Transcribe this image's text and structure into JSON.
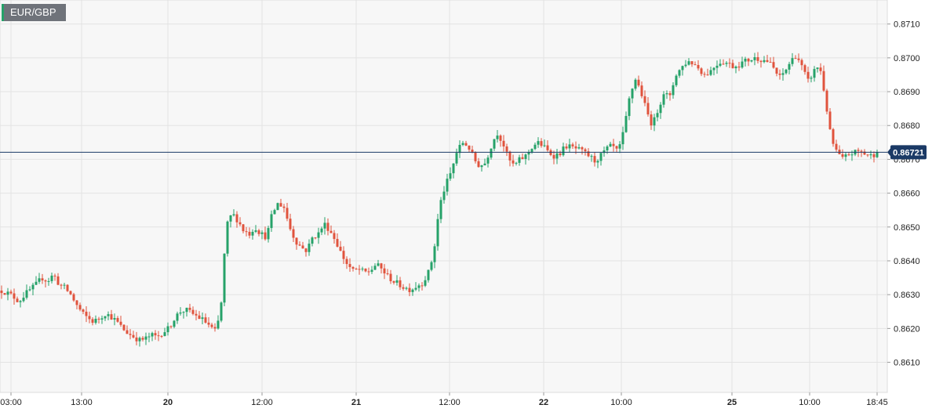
{
  "symbol": "EUR/GBP",
  "current_price_label": "0.86721",
  "colors": {
    "up": "#26a269",
    "down": "#e0533d",
    "price_line": "#1b3a66",
    "grid": "#e3e3e3",
    "plot_bg": "#f7f7f7",
    "badge_bg": "#6f737a"
  },
  "chart_data": {
    "type": "candlestick",
    "title": "",
    "y_ticks": [
      "0.8610",
      "0.8620",
      "0.8630",
      "0.8640",
      "0.8650",
      "0.8660",
      "0.8670",
      "0.8680",
      "0.8690",
      "0.8700",
      "0.8710"
    ],
    "ylim": [
      0.86011,
      0.87171
    ],
    "x_ticks": [
      {
        "label": "03:00",
        "bold": false
      },
      {
        "label": "13:00",
        "bold": false
      },
      {
        "label": "20",
        "bold": true
      },
      {
        "label": "12:00",
        "bold": false
      },
      {
        "label": "21",
        "bold": true
      },
      {
        "label": "12:00",
        "bold": false
      },
      {
        "label": "22",
        "bold": true
      },
      {
        "label": "10:00",
        "bold": false
      },
      {
        "label": "25",
        "bold": true
      },
      {
        "label": "10:00",
        "bold": false
      },
      {
        "label": "18:45",
        "bold": false
      }
    ],
    "current_price": 0.86721,
    "grid": true,
    "price_path": [
      0.86312,
      0.86305,
      0.86295,
      0.8628,
      0.863,
      0.86315,
      0.8633,
      0.8635,
      0.8634,
      0.8636,
      0.8633,
      0.8632,
      0.863,
      0.8627,
      0.86245,
      0.8623,
      0.8622,
      0.8623,
      0.86245,
      0.86235,
      0.8622,
      0.862,
      0.86185,
      0.86175,
      0.86165,
      0.8617,
      0.8618,
      0.86175,
      0.8619,
      0.862,
      0.8623,
      0.8625,
      0.86255,
      0.86245,
      0.86235,
      0.86225,
      0.8621,
      0.8619,
      0.8624,
      0.865,
      0.8654,
      0.8652,
      0.8649,
      0.8648,
      0.865,
      0.8648,
      0.8647,
      0.8654,
      0.8657,
      0.8656,
      0.865,
      0.8646,
      0.8644,
      0.8643,
      0.8647,
      0.8648,
      0.8651,
      0.8649,
      0.8646,
      0.8642,
      0.8639,
      0.8637,
      0.86375,
      0.86365,
      0.8637,
      0.8639,
      0.86375,
      0.86355,
      0.8634,
      0.8633,
      0.8632,
      0.86315,
      0.86325,
      0.86335,
      0.8636,
      0.8642,
      0.8656,
      0.8662,
      0.8666,
      0.8672,
      0.8675,
      0.8674,
      0.867,
      0.8668,
      0.8669,
      0.8674,
      0.8678,
      0.8675,
      0.867,
      0.8668,
      0.867,
      0.8671,
      0.86735,
      0.8675,
      0.8674,
      0.8672,
      0.8671,
      0.8672,
      0.8674,
      0.86735,
      0.8673,
      0.8672,
      0.8671,
      0.86695,
      0.8671,
      0.8673,
      0.8674,
      0.8672,
      0.8678,
      0.8688,
      0.8694,
      0.869,
      0.8684,
      0.868,
      0.8685,
      0.869,
      0.8688,
      0.8695,
      0.8697,
      0.8699,
      0.86985,
      0.8697,
      0.8695,
      0.8696,
      0.8698,
      0.8699,
      0.86985,
      0.86975,
      0.8698,
      0.8699,
      0.86995,
      0.87,
      0.86995,
      0.8699,
      0.8697,
      0.8694,
      0.8696,
      0.8699,
      0.8701,
      0.8697,
      0.8693,
      0.8696,
      0.8698,
      0.8688,
      0.8676,
      0.8672,
      0.867,
      0.86715,
      0.8672,
      0.86725,
      0.86715,
      0.8671,
      0.86721
    ]
  }
}
